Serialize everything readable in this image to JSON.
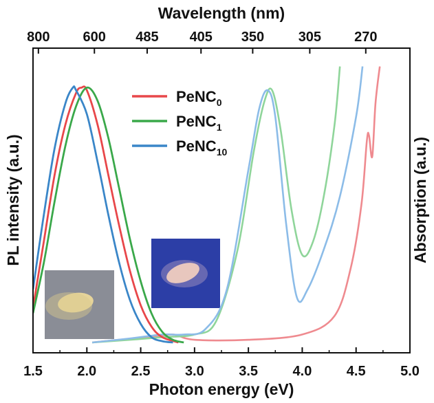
{
  "chart_data": {
    "type": "line",
    "xlabel": "Photon energy (eV)",
    "x2label": "Wavelength (nm)",
    "ylabel_left": "PL intensity (a.u.)",
    "ylabel_right": "Absorption (a.u.)",
    "xlim": [
      1.5,
      5.0
    ],
    "x_ticks": [
      "1.5",
      "2.0",
      "2.5",
      "3.0",
      "3.5",
      "4.0",
      "4.5",
      "5.0"
    ],
    "x2_ticks": [
      "800",
      "600",
      "485",
      "405",
      "350",
      "305",
      "270"
    ],
    "x2_tick_energies": [
      1.55,
      2.07,
      2.56,
      3.06,
      3.54,
      4.07,
      4.59
    ],
    "y_range": [
      0,
      1
    ],
    "legend": [
      {
        "base": "PeNC",
        "sub": "0",
        "color": "#e8474a"
      },
      {
        "base": "PeNC",
        "sub": "1",
        "color": "#3aa84a"
      },
      {
        "base": "PeNC",
        "sub": "10",
        "color": "#3a86c8"
      }
    ],
    "pl_series": [
      {
        "label": "PeNC0",
        "color": "#e8474a",
        "x": [
          1.5,
          1.6,
          1.7,
          1.8,
          1.9,
          1.95,
          2.0,
          2.1,
          2.2,
          2.3,
          2.4,
          2.5,
          2.6,
          2.7,
          2.85
        ],
        "y": [
          0.13,
          0.38,
          0.63,
          0.82,
          0.94,
          0.96,
          0.95,
          0.82,
          0.63,
          0.44,
          0.27,
          0.14,
          0.06,
          0.02,
          0.0
        ]
      },
      {
        "label": "PeNC1",
        "color": "#3aa84a",
        "x": [
          1.5,
          1.6,
          1.7,
          1.8,
          1.9,
          2.0,
          2.1,
          2.2,
          2.3,
          2.4,
          2.5,
          2.6,
          2.7,
          2.8,
          2.9
        ],
        "y": [
          0.11,
          0.3,
          0.53,
          0.74,
          0.89,
          0.96,
          0.91,
          0.77,
          0.58,
          0.39,
          0.23,
          0.11,
          0.04,
          0.01,
          0.0
        ]
      },
      {
        "label": "PeNC10",
        "color": "#3a86c8",
        "x": [
          1.5,
          1.6,
          1.7,
          1.8,
          1.87,
          1.9,
          2.0,
          2.1,
          2.2,
          2.3,
          2.4,
          2.5,
          2.6,
          2.7,
          2.8
        ],
        "y": [
          0.2,
          0.48,
          0.73,
          0.9,
          0.96,
          0.95,
          0.86,
          0.68,
          0.48,
          0.3,
          0.16,
          0.07,
          0.02,
          0.005,
          0.0
        ]
      }
    ],
    "abs_series": [
      {
        "label": "PeNC0",
        "color": "#ef8a8f",
        "x": [
          2.05,
          2.3,
          2.6,
          2.8,
          3.0,
          3.5,
          4.0,
          4.3,
          4.45,
          4.55,
          4.6,
          4.62,
          4.65,
          4.68,
          4.72
        ],
        "y": [
          0.0,
          0.01,
          0.02,
          0.03,
          0.01,
          0.01,
          0.03,
          0.1,
          0.28,
          0.52,
          0.76,
          0.78,
          0.7,
          0.9,
          1.04
        ]
      },
      {
        "label": "PeNC1",
        "color": "#8fd59a",
        "x": [
          2.05,
          2.4,
          2.7,
          3.0,
          3.2,
          3.4,
          3.55,
          3.65,
          3.72,
          3.8,
          3.9,
          4.0,
          4.1,
          4.2,
          4.3,
          4.35
        ],
        "y": [
          0.0,
          0.01,
          0.02,
          0.03,
          0.08,
          0.35,
          0.72,
          0.91,
          0.95,
          0.8,
          0.5,
          0.33,
          0.38,
          0.55,
          0.82,
          1.04
        ]
      },
      {
        "label": "PeNC10",
        "color": "#8cbce8",
        "x": [
          2.05,
          2.4,
          2.7,
          2.9,
          3.1,
          3.3,
          3.5,
          3.6,
          3.68,
          3.75,
          3.85,
          3.95,
          4.05,
          4.2,
          4.35,
          4.5,
          4.56
        ],
        "y": [
          0.0,
          0.015,
          0.03,
          0.03,
          0.05,
          0.2,
          0.65,
          0.88,
          0.95,
          0.85,
          0.45,
          0.17,
          0.2,
          0.35,
          0.55,
          0.85,
          1.04
        ]
      }
    ]
  },
  "insets": {
    "left_photo_color": "#8a8d96",
    "left_powder_color": "#e6d49a",
    "right_photo_color": "#2c3ea6",
    "right_powder_color": "#f2cfb8"
  }
}
